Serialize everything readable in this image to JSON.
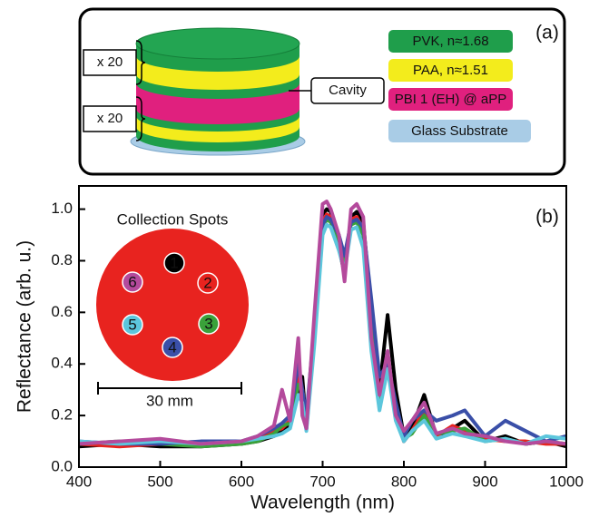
{
  "diagram": {
    "label": "(a)",
    "stack_labels": [
      "x 20",
      "x 20"
    ],
    "cavity": "Cavity",
    "legend": [
      {
        "label": "PVK, n≈1.68",
        "color": "#1f9e4b"
      },
      {
        "label": "PAA, n≈1.51",
        "color": "#f3ec1c"
      },
      {
        "label": "PBI 1 (EH) @ aPP",
        "color": "#e0207e"
      },
      {
        "label": "Glass Substrate",
        "color": "#a9cce6"
      }
    ]
  },
  "chart_data": {
    "type": "line",
    "xlabel": "Wavelength (nm)",
    "ylabel": "Reflectance (arb. u.)",
    "annotations": [
      "(b)",
      "Collection Spots",
      "30 mm"
    ],
    "x": [
      400,
      450,
      500,
      550,
      600,
      620,
      640,
      650,
      660,
      670,
      675,
      680,
      690,
      700,
      705,
      710,
      720,
      727,
      735,
      742,
      750,
      760,
      770,
      780,
      790,
      800,
      810,
      825,
      840,
      860,
      875,
      900,
      925,
      950,
      975,
      1000
    ],
    "series": [
      {
        "name": "1",
        "color": "#000000",
        "values": [
          0.08,
          0.09,
          0.08,
          0.08,
          0.09,
          0.1,
          0.12,
          0.14,
          0.16,
          0.3,
          0.35,
          0.15,
          0.5,
          0.98,
          1.0,
          0.99,
          0.85,
          0.75,
          0.97,
          0.99,
          0.95,
          0.6,
          0.3,
          0.59,
          0.3,
          0.12,
          0.15,
          0.28,
          0.12,
          0.15,
          0.18,
          0.1,
          0.12,
          0.09,
          0.1,
          0.08
        ]
      },
      {
        "name": "2",
        "color": "#e8231f",
        "values": [
          0.09,
          0.08,
          0.09,
          0.09,
          0.1,
          0.11,
          0.14,
          0.15,
          0.18,
          0.35,
          0.3,
          0.18,
          0.55,
          0.95,
          0.98,
          0.97,
          0.88,
          0.78,
          0.96,
          0.97,
          0.92,
          0.55,
          0.28,
          0.42,
          0.22,
          0.1,
          0.14,
          0.22,
          0.12,
          0.16,
          0.14,
          0.11,
          0.1,
          0.1,
          0.09,
          0.09
        ]
      },
      {
        "name": "3",
        "color": "#3aa13a",
        "values": [
          0.09,
          0.1,
          0.09,
          0.08,
          0.09,
          0.1,
          0.13,
          0.16,
          0.17,
          0.32,
          0.3,
          0.17,
          0.52,
          0.93,
          0.96,
          0.95,
          0.86,
          0.8,
          0.94,
          0.95,
          0.9,
          0.52,
          0.27,
          0.4,
          0.2,
          0.11,
          0.13,
          0.2,
          0.13,
          0.14,
          0.15,
          0.1,
          0.11,
          0.09,
          0.1,
          0.09
        ]
      },
      {
        "name": "4",
        "color": "#3a4fa8",
        "values": [
          0.1,
          0.09,
          0.09,
          0.1,
          0.1,
          0.12,
          0.15,
          0.17,
          0.2,
          0.4,
          0.3,
          0.2,
          0.55,
          0.94,
          0.97,
          0.96,
          0.9,
          0.82,
          0.95,
          0.96,
          0.93,
          0.65,
          0.35,
          0.4,
          0.25,
          0.12,
          0.18,
          0.22,
          0.18,
          0.2,
          0.22,
          0.12,
          0.18,
          0.14,
          0.1,
          0.12
        ]
      },
      {
        "name": "5",
        "color": "#5cc6dc",
        "values": [
          0.1,
          0.09,
          0.1,
          0.09,
          0.1,
          0.11,
          0.12,
          0.13,
          0.15,
          0.28,
          0.25,
          0.14,
          0.48,
          0.9,
          0.94,
          0.93,
          0.84,
          0.76,
          0.92,
          0.93,
          0.85,
          0.45,
          0.22,
          0.38,
          0.18,
          0.1,
          0.14,
          0.18,
          0.11,
          0.13,
          0.12,
          0.1,
          0.11,
          0.09,
          0.12,
          0.11
        ]
      },
      {
        "name": "6",
        "color": "#b44a9c",
        "values": [
          0.09,
          0.1,
          0.11,
          0.09,
          0.1,
          0.12,
          0.16,
          0.3,
          0.18,
          0.5,
          0.2,
          0.15,
          0.6,
          1.02,
          1.03,
          1.0,
          0.9,
          0.72,
          1.0,
          1.02,
          0.97,
          0.5,
          0.28,
          0.45,
          0.2,
          0.14,
          0.18,
          0.25,
          0.13,
          0.15,
          0.13,
          0.12,
          0.1,
          0.09,
          0.1,
          0.09
        ]
      }
    ],
    "xlim": [
      400,
      1000
    ],
    "xticks": [
      400,
      500,
      600,
      700,
      800,
      900,
      1000
    ],
    "ylim": [
      0,
      1.09
    ],
    "yticks": [
      {
        "value": 0,
        "label": "0.0"
      },
      0.2,
      0.4,
      0.6,
      0.8,
      {
        "value": 1,
        "label": "1.0"
      }
    ],
    "grid": false
  }
}
